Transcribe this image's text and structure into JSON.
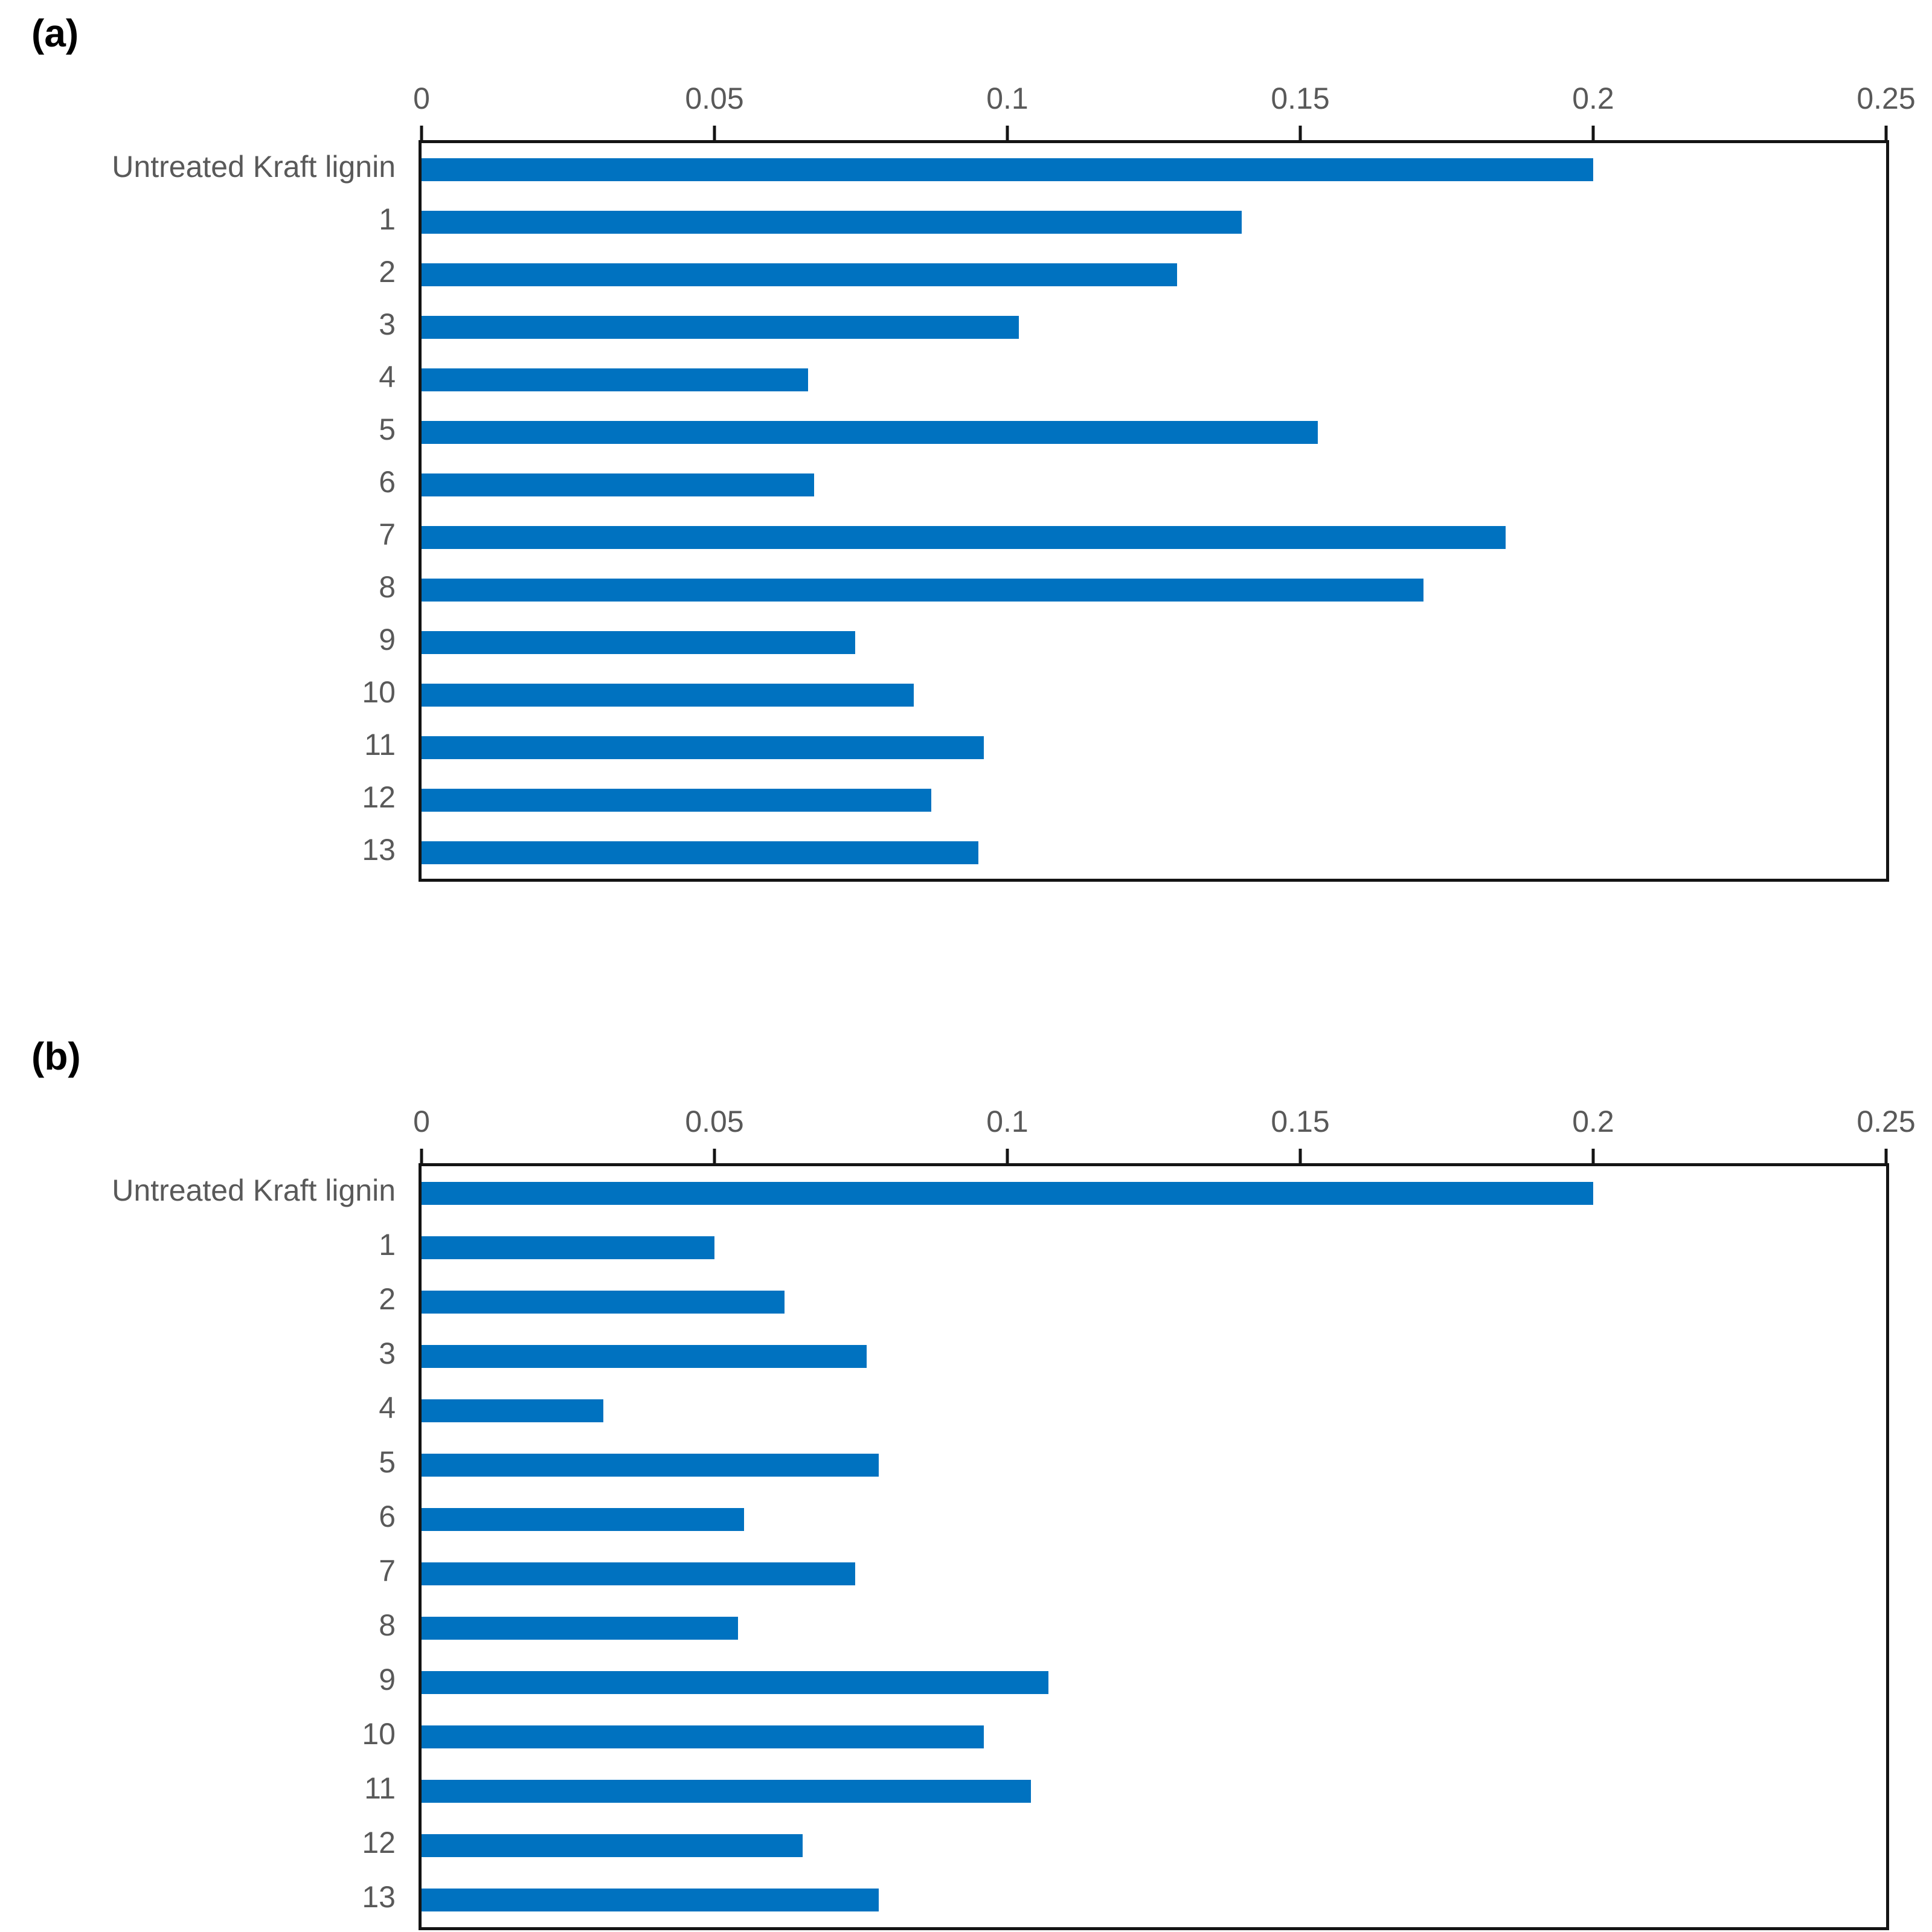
{
  "page": {
    "panel_a_label": "(a)",
    "panel_b_label": "(b)"
  },
  "colors": {
    "bar": "#0072C0",
    "axis": "#141414",
    "tick_label": "#595959",
    "category_label": "#595959",
    "panel_label": "#000000"
  },
  "chart_data": [
    {
      "id": "a",
      "type": "bar",
      "orientation": "horizontal",
      "panel_label": "(a)",
      "title": "",
      "xlabel": "",
      "ylabel": "",
      "xlim": [
        0,
        0.25
      ],
      "xticks": [
        0,
        0.05,
        0.1,
        0.15,
        0.2,
        0.25
      ],
      "xtick_labels": [
        "0",
        "0.05",
        "0.1",
        "0.15",
        "0.2",
        "0.25"
      ],
      "grid": false,
      "legend_position": "none",
      "categories": [
        "Untreated Kraft lignin",
        "1",
        "2",
        "3",
        "4",
        "5",
        "6",
        "7",
        "8",
        "9",
        "10",
        "11",
        "12",
        "13"
      ],
      "values": [
        0.2,
        0.14,
        0.129,
        0.102,
        0.066,
        0.153,
        0.067,
        0.185,
        0.171,
        0.074,
        0.084,
        0.096,
        0.087,
        0.095
      ]
    },
    {
      "id": "b",
      "type": "bar",
      "orientation": "horizontal",
      "panel_label": "(b)",
      "title": "",
      "xlabel": "",
      "ylabel": "",
      "xlim": [
        0,
        0.25
      ],
      "xticks": [
        0,
        0.05,
        0.1,
        0.15,
        0.2,
        0.25
      ],
      "xtick_labels": [
        "0",
        "0.05",
        "0.1",
        "0.15",
        "0.2",
        "0.25"
      ],
      "grid": false,
      "legend_position": "none",
      "categories": [
        "Untreated Kraft lignin",
        "1",
        "2",
        "3",
        "4",
        "5",
        "6",
        "7",
        "8",
        "9",
        "10",
        "11",
        "12",
        "13"
      ],
      "values": [
        0.2,
        0.05,
        0.062,
        0.076,
        0.031,
        0.078,
        0.055,
        0.074,
        0.054,
        0.107,
        0.096,
        0.104,
        0.065,
        0.078
      ]
    }
  ]
}
